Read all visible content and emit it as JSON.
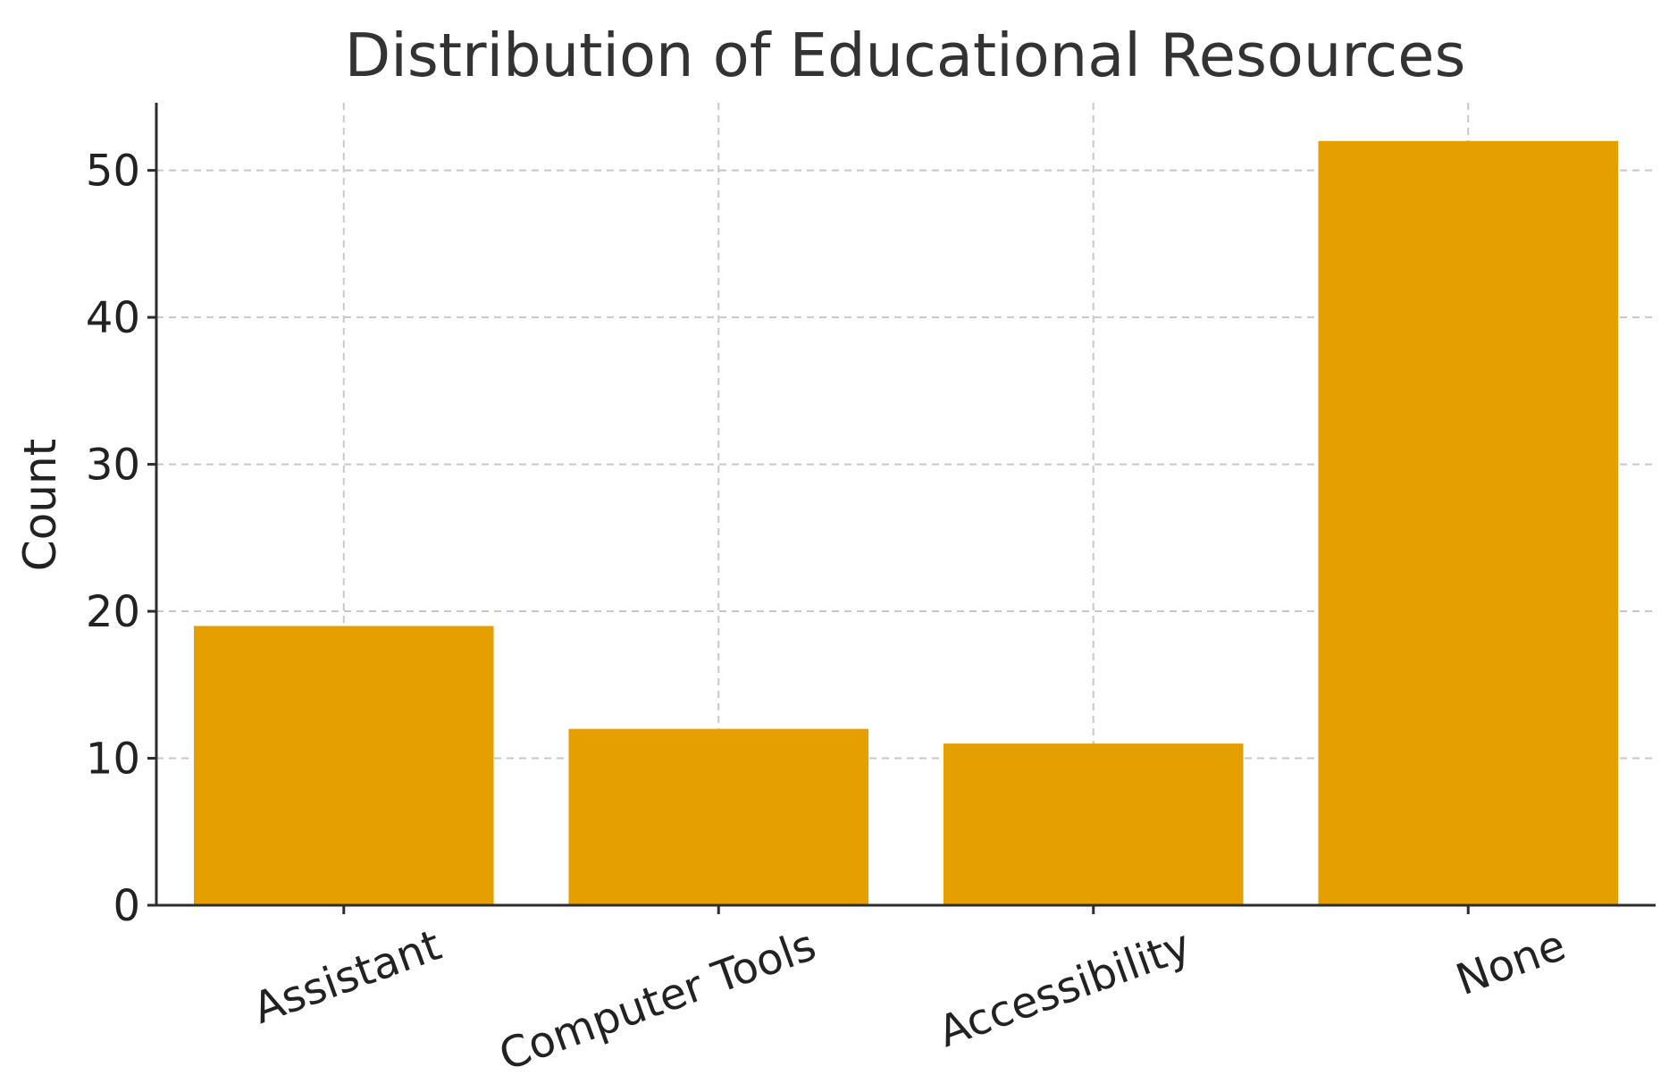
{
  "chart_data": {
    "type": "bar",
    "title": "Distribution of Educational Resources",
    "xlabel": "",
    "ylabel": "Count",
    "categories": [
      "Assistant",
      "Computer Tools",
      "Accessibility",
      "None"
    ],
    "values": [
      19,
      12,
      11,
      52
    ],
    "ylim": [
      0,
      54.6
    ],
    "yticks": [
      0,
      10,
      20,
      30,
      40,
      50
    ],
    "grid": true,
    "bar_color": "#E69F00"
  }
}
